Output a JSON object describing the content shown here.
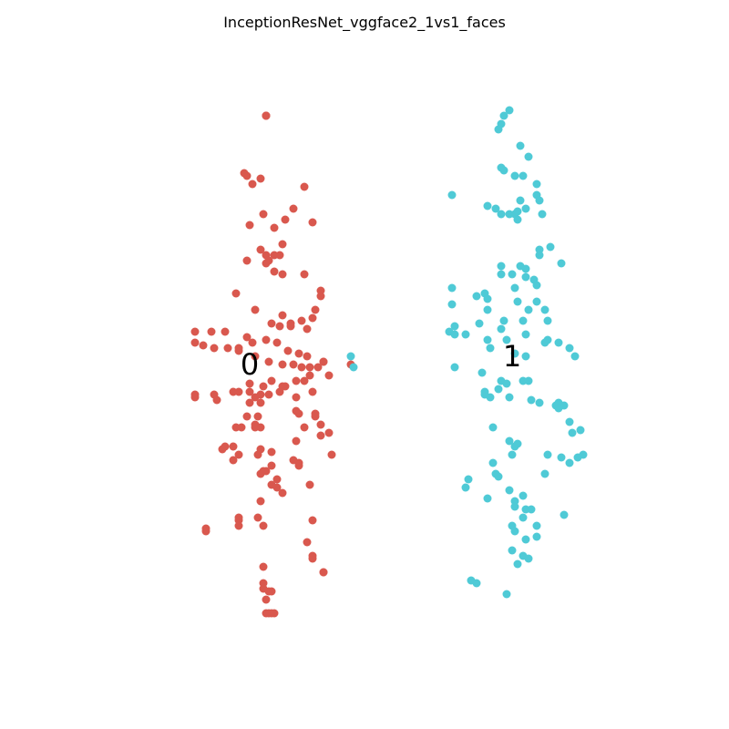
{
  "chart_data": {
    "type": "scatter",
    "title": "InceptionResNet_vggface2_1vs1_faces",
    "xlabel": "",
    "ylabel": "",
    "axes_visible": false,
    "grid": false,
    "legend": "none",
    "xlim": [
      -10,
      10
    ],
    "ylim": [
      -10,
      10
    ],
    "cluster_labels": [
      {
        "text": "0",
        "x": -4.2,
        "y": 0.0
      },
      {
        "text": "1",
        "x": 5.4,
        "y": 0.3
      }
    ],
    "series": [
      {
        "color": "#d9584e",
        "points": [
          [
            -3.6,
            9.1
          ],
          [
            -3.6,
            9.1
          ],
          [
            -3.6,
            9.1
          ],
          [
            -4.4,
            7.0
          ],
          [
            -4.3,
            6.9
          ],
          [
            -4.1,
            6.6
          ],
          [
            -3.8,
            6.8
          ],
          [
            -2.2,
            6.5
          ],
          [
            -4.2,
            5.1
          ],
          [
            -3.7,
            5.5
          ],
          [
            -3.8,
            4.2
          ],
          [
            -3.0,
            4.4
          ],
          [
            -3.6,
            4.0
          ],
          [
            -3.3,
            4.0
          ],
          [
            -3.1,
            4.0
          ],
          [
            -4.3,
            3.8
          ],
          [
            -3.5,
            3.8
          ],
          [
            -3.3,
            3.4
          ],
          [
            -3.6,
            3.7
          ],
          [
            -1.9,
            5.2
          ],
          [
            -2.6,
            5.7
          ],
          [
            -2.9,
            5.3
          ],
          [
            -3.3,
            5.0
          ],
          [
            -3.0,
            3.3
          ],
          [
            -2.2,
            3.3
          ],
          [
            -4.7,
            2.6
          ],
          [
            -4.0,
            2.0
          ],
          [
            -3.0,
            1.8
          ],
          [
            -2.7,
            1.4
          ],
          [
            -2.7,
            1.5
          ],
          [
            -2.3,
            1.6
          ],
          [
            -1.6,
            2.7
          ],
          [
            -1.6,
            2.5
          ],
          [
            -1.8,
            2.0
          ],
          [
            -1.9,
            1.7
          ],
          [
            -2.1,
            1.3
          ],
          [
            -3.1,
            1.4
          ],
          [
            -3.4,
            1.5
          ],
          [
            -6.2,
            1.2
          ],
          [
            -5.6,
            1.2
          ],
          [
            -5.1,
            1.2
          ],
          [
            -4.3,
            1.0
          ],
          [
            -4.1,
            0.8
          ],
          [
            -3.6,
            0.9
          ],
          [
            -3.2,
            0.8
          ],
          [
            -2.8,
            0.5
          ],
          [
            -2.4,
            0.4
          ],
          [
            -2.1,
            0.3
          ],
          [
            -6.2,
            0.8
          ],
          [
            -5.9,
            0.7
          ],
          [
            -5.5,
            0.6
          ],
          [
            -5.0,
            0.6
          ],
          [
            -4.6,
            0.5
          ],
          [
            -4.6,
            0.6
          ],
          [
            -4.0,
            0.3
          ],
          [
            -3.5,
            0.1
          ],
          [
            -3.0,
            0.0
          ],
          [
            -2.6,
            0.0
          ],
          [
            -2.3,
            -0.1
          ],
          [
            -2.0,
            -0.1
          ],
          [
            -1.7,
            -0.1
          ],
          [
            -1.5,
            0.1
          ],
          [
            -1.5,
            0.1
          ],
          [
            -1.3,
            -0.4
          ],
          [
            -2.0,
            -0.4
          ],
          [
            -2.2,
            -0.6
          ],
          [
            -2.5,
            -0.6
          ],
          [
            -2.9,
            -0.8
          ],
          [
            -4.8,
            -1.0
          ],
          [
            -4.6,
            -1.0
          ],
          [
            -4.2,
            -1.0
          ],
          [
            -3.7,
            -0.8
          ],
          [
            -3.4,
            -0.6
          ],
          [
            -3.5,
            -1.1
          ],
          [
            -3.8,
            -1.1
          ],
          [
            -4.0,
            -1.2
          ],
          [
            -4.2,
            -0.7
          ],
          [
            -3.0,
            -0.8
          ],
          [
            -3.1,
            -1.0
          ],
          [
            -2.5,
            -1.2
          ],
          [
            -1.9,
            -1.0
          ],
          [
            -5.5,
            -1.1
          ],
          [
            -6.2,
            -1.1
          ],
          [
            -6.2,
            -1.2
          ],
          [
            -5.4,
            -1.3
          ],
          [
            -4.2,
            -1.4
          ],
          [
            -3.8,
            -1.4
          ],
          [
            -3.9,
            -1.9
          ],
          [
            -4.3,
            -1.9
          ],
          [
            -4.0,
            -2.2
          ],
          [
            -3.8,
            -2.3
          ],
          [
            -4.5,
            -2.3
          ],
          [
            -4.7,
            -2.3
          ],
          [
            -4.0,
            -2.3
          ],
          [
            -2.5,
            -1.7
          ],
          [
            -2.4,
            -1.8
          ],
          [
            -1.8,
            -1.8
          ],
          [
            -1.8,
            -1.9
          ],
          [
            -1.3,
            -2.5
          ],
          [
            -1.6,
            -2.2
          ],
          [
            -2.2,
            -2.3
          ],
          [
            -2.5,
            -2.8
          ],
          [
            -1.6,
            -2.6
          ],
          [
            -1.2,
            -3.3
          ],
          [
            -5.1,
            -3.0
          ],
          [
            -5.2,
            -3.1
          ],
          [
            -4.6,
            -3.3
          ],
          [
            -4.8,
            -3.0
          ],
          [
            -3.8,
            -3.1
          ],
          [
            -3.9,
            -3.3
          ],
          [
            -3.4,
            -3.2
          ],
          [
            -3.4,
            -3.7
          ],
          [
            -3.6,
            -3.9
          ],
          [
            -3.7,
            -3.9
          ],
          [
            -3.2,
            -4.2
          ],
          [
            -4.8,
            -3.5
          ],
          [
            -3.8,
            -4.0
          ],
          [
            -3.2,
            -4.5
          ],
          [
            -3.4,
            -4.4
          ],
          [
            -2.4,
            -3.6
          ],
          [
            -2.4,
            -3.7
          ],
          [
            -2.0,
            -4.4
          ],
          [
            -3.0,
            -4.7
          ],
          [
            -2.6,
            -3.5
          ],
          [
            -3.8,
            -5.0
          ],
          [
            -4.6,
            -5.6
          ],
          [
            -4.6,
            -5.7
          ],
          [
            -4.6,
            -5.9
          ],
          [
            -3.9,
            -5.6
          ],
          [
            -3.7,
            -5.9
          ],
          [
            -5.8,
            -6.0
          ],
          [
            -5.8,
            -6.1
          ],
          [
            -1.9,
            -5.7
          ],
          [
            -2.1,
            -6.5
          ],
          [
            -1.9,
            -7.0
          ],
          [
            -1.9,
            -7.1
          ],
          [
            -3.7,
            -7.4
          ],
          [
            -3.7,
            -8.0
          ],
          [
            -3.7,
            -8.2
          ],
          [
            -3.5,
            -8.3
          ],
          [
            -3.4,
            -8.3
          ],
          [
            -1.5,
            -7.6
          ],
          [
            -1.5,
            -7.6
          ],
          [
            -3.6,
            -8.6
          ],
          [
            -3.5,
            -9.1
          ],
          [
            -3.4,
            -9.1
          ],
          [
            -3.6,
            -9.1
          ],
          [
            -3.3,
            -9.1
          ],
          [
            -0.5,
            -0.0
          ]
        ]
      },
      {
        "color": "#4fcad6",
        "points": [
          [
            5.3,
            9.3
          ],
          [
            5.1,
            9.1
          ],
          [
            5.0,
            8.8
          ],
          [
            4.9,
            8.6
          ],
          [
            5.7,
            8.0
          ],
          [
            6.0,
            7.6
          ],
          [
            5.0,
            7.2
          ],
          [
            5.1,
            7.1
          ],
          [
            5.5,
            6.9
          ],
          [
            5.8,
            6.9
          ],
          [
            6.3,
            6.6
          ],
          [
            3.2,
            6.2
          ],
          [
            5.7,
            6.0
          ],
          [
            6.3,
            6.2
          ],
          [
            6.4,
            6.0
          ],
          [
            4.5,
            5.8
          ],
          [
            4.8,
            5.7
          ],
          [
            5.0,
            5.5
          ],
          [
            5.3,
            5.5
          ],
          [
            5.5,
            5.5
          ],
          [
            5.6,
            5.6
          ],
          [
            5.9,
            5.7
          ],
          [
            6.5,
            5.5
          ],
          [
            5.6,
            5.3
          ],
          [
            6.4,
            4.2
          ],
          [
            6.8,
            4.3
          ],
          [
            6.4,
            4.0
          ],
          [
            7.2,
            3.7
          ],
          [
            5.0,
            3.6
          ],
          [
            5.0,
            3.3
          ],
          [
            5.4,
            3.3
          ],
          [
            5.7,
            3.6
          ],
          [
            5.9,
            3.5
          ],
          [
            5.9,
            3.2
          ],
          [
            6.2,
            3.1
          ],
          [
            6.3,
            2.9
          ],
          [
            5.5,
            2.8
          ],
          [
            3.2,
            2.8
          ],
          [
            4.4,
            2.6
          ],
          [
            4.5,
            2.4
          ],
          [
            3.2,
            2.2
          ],
          [
            4.1,
            2.5
          ],
          [
            5.6,
            2.3
          ],
          [
            6.3,
            2.3
          ],
          [
            6.0,
            2.0
          ],
          [
            6.6,
            2.0
          ],
          [
            4.5,
            2.0
          ],
          [
            5.1,
            1.6
          ],
          [
            5.8,
            1.6
          ],
          [
            6.7,
            1.6
          ],
          [
            5.0,
            1.3
          ],
          [
            4.2,
            1.5
          ],
          [
            3.1,
            1.2
          ],
          [
            3.3,
            1.4
          ],
          [
            3.3,
            1.1
          ],
          [
            3.7,
            1.1
          ],
          [
            4.5,
            0.9
          ],
          [
            4.6,
            0.6
          ],
          [
            5.2,
            0.9
          ],
          [
            5.9,
            1.1
          ],
          [
            6.7,
            0.9
          ],
          [
            6.6,
            0.8
          ],
          [
            7.1,
            0.8
          ],
          [
            7.5,
            0.6
          ],
          [
            7.7,
            0.3
          ],
          [
            5.9,
            0.3
          ],
          [
            5.5,
            0.4
          ],
          [
            3.3,
            -0.1
          ],
          [
            4.3,
            -0.3
          ],
          [
            5.0,
            -0.6
          ],
          [
            5.8,
            -0.6
          ],
          [
            5.2,
            -0.7
          ],
          [
            6.0,
            -0.6
          ],
          [
            4.9,
            -0.9
          ],
          [
            4.4,
            -1.0
          ],
          [
            4.4,
            -1.1
          ],
          [
            4.6,
            -1.2
          ],
          [
            5.3,
            -1.2
          ],
          [
            6.1,
            -1.3
          ],
          [
            6.4,
            -1.4
          ],
          [
            7.0,
            -1.5
          ],
          [
            7.1,
            -1.4
          ],
          [
            7.3,
            -1.5
          ],
          [
            7.1,
            -1.6
          ],
          [
            7.5,
            -2.1
          ],
          [
            7.9,
            -2.4
          ],
          [
            7.2,
            -3.4
          ],
          [
            7.5,
            -3.6
          ],
          [
            8.0,
            -3.3
          ],
          [
            7.8,
            -3.4
          ],
          [
            6.7,
            -3.3
          ],
          [
            6.6,
            -4.0
          ],
          [
            7.6,
            -2.5
          ],
          [
            4.7,
            -2.3
          ],
          [
            5.3,
            -2.8
          ],
          [
            5.5,
            -3.0
          ],
          [
            5.6,
            -2.9
          ],
          [
            5.4,
            -3.3
          ],
          [
            4.7,
            -3.6
          ],
          [
            4.8,
            -4.0
          ],
          [
            4.9,
            -4.1
          ],
          [
            3.8,
            -4.2
          ],
          [
            3.7,
            -4.5
          ],
          [
            4.5,
            -4.9
          ],
          [
            5.3,
            -4.6
          ],
          [
            5.5,
            -5.0
          ],
          [
            5.8,
            -4.8
          ],
          [
            5.9,
            -5.3
          ],
          [
            5.5,
            -5.2
          ],
          [
            6.1,
            -5.3
          ],
          [
            5.8,
            -5.6
          ],
          [
            5.4,
            -5.9
          ],
          [
            5.5,
            -6.1
          ],
          [
            6.3,
            -5.9
          ],
          [
            5.9,
            -6.4
          ],
          [
            6.3,
            -6.3
          ],
          [
            7.3,
            -5.5
          ],
          [
            5.4,
            -6.8
          ],
          [
            5.8,
            -7.0
          ],
          [
            6.0,
            -7.1
          ],
          [
            5.6,
            -7.3
          ],
          [
            3.9,
            -7.9
          ],
          [
            4.1,
            -8.0
          ],
          [
            5.2,
            -8.4
          ],
          [
            -0.5,
            0.3
          ],
          [
            -0.4,
            -0.1
          ]
        ]
      }
    ]
  }
}
